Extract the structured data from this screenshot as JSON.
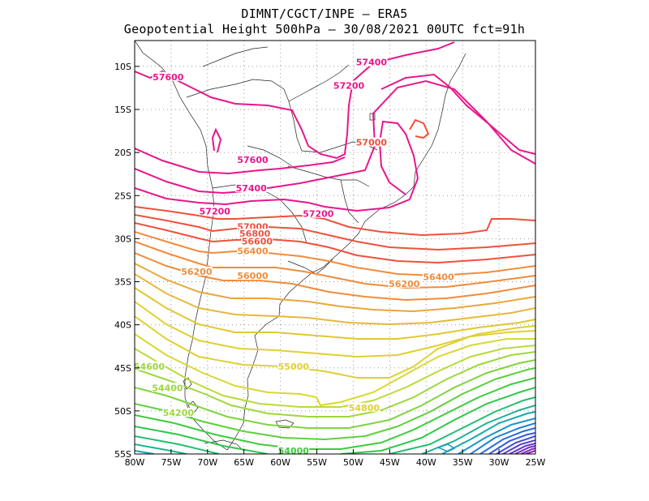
{
  "header": {
    "line1": "DIMNT/CGCT/INPE —  ERA5",
    "line2": "Geopotential Height 500hPa —  30/08/2021 00UTC fct=91h"
  },
  "map": {
    "lon_range": [
      -80,
      -25
    ],
    "lat_range": [
      -55,
      -7
    ],
    "grid": "dotted",
    "x_ticks": [
      {
        "value": -80,
        "label": "80W"
      },
      {
        "value": -75,
        "label": "75W"
      },
      {
        "value": -70,
        "label": "70W"
      },
      {
        "value": -65,
        "label": "65W"
      },
      {
        "value": -60,
        "label": "60W"
      },
      {
        "value": -55,
        "label": "55W"
      },
      {
        "value": -50,
        "label": "50W"
      },
      {
        "value": -45,
        "label": "45W"
      },
      {
        "value": -40,
        "label": "40W"
      },
      {
        "value": -35,
        "label": "35W"
      },
      {
        "value": -30,
        "label": "30W"
      },
      {
        "value": -25,
        "label": "25W"
      }
    ],
    "y_ticks": [
      {
        "value": -10,
        "label": "10S"
      },
      {
        "value": -15,
        "label": "15S"
      },
      {
        "value": -20,
        "label": "20S"
      },
      {
        "value": -25,
        "label": "25S"
      },
      {
        "value": -30,
        "label": "30S"
      },
      {
        "value": -35,
        "label": "35S"
      },
      {
        "value": -40,
        "label": "40S"
      },
      {
        "value": -45,
        "label": "45S"
      },
      {
        "value": -50,
        "label": "50S"
      },
      {
        "value": -55,
        "label": "55S"
      }
    ],
    "contour_labels": [
      {
        "text": "57400",
        "lon": -47.5,
        "lat": -9.7,
        "color": "#e8168c"
      },
      {
        "text": "57600",
        "lon": -75.4,
        "lat": -11.4,
        "color": "#e8168c"
      },
      {
        "text": "57200",
        "lon": -50.6,
        "lat": -12.4,
        "color": "#e8168c"
      },
      {
        "text": "57000",
        "lon": -47.5,
        "lat": -19.0,
        "color": "#f0503c"
      },
      {
        "text": "57600",
        "lon": -63.8,
        "lat": -21.0,
        "color": "#e8168c"
      },
      {
        "text": "57400",
        "lon": -64.0,
        "lat": -24.3,
        "color": "#e8168c"
      },
      {
        "text": "57200",
        "lon": -69.0,
        "lat": -27.0,
        "color": "#e8168c"
      },
      {
        "text": "57200",
        "lon": -54.8,
        "lat": -27.3,
        "color": "#e8168c"
      },
      {
        "text": "57000",
        "lon": -63.8,
        "lat": -28.8,
        "color": "#f0503c"
      },
      {
        "text": "56800",
        "lon": -63.5,
        "lat": -29.6,
        "color": "#f0503c"
      },
      {
        "text": "56600",
        "lon": -63.2,
        "lat": -30.5,
        "color": "#f0503c"
      },
      {
        "text": "56400",
        "lon": -63.8,
        "lat": -31.6,
        "color": "#f08c3c"
      },
      {
        "text": "56200",
        "lon": -71.5,
        "lat": -34.0,
        "color": "#f08c3c"
      },
      {
        "text": "56000",
        "lon": -63.8,
        "lat": -34.5,
        "color": "#f08c3c"
      },
      {
        "text": "56400",
        "lon": -38.3,
        "lat": -34.6,
        "color": "#f08c3c"
      },
      {
        "text": "56200",
        "lon": -43.0,
        "lat": -35.4,
        "color": "#f08c3c"
      },
      {
        "text": "55000",
        "lon": -58.2,
        "lat": -45.0,
        "color": "#e0d030"
      },
      {
        "text": "54600",
        "lon": -78.0,
        "lat": -45.0,
        "color": "#9cd83c"
      },
      {
        "text": "54400",
        "lon": -75.5,
        "lat": -47.5,
        "color": "#9cd83c"
      },
      {
        "text": "54800",
        "lon": -48.5,
        "lat": -49.8,
        "color": "#e0d030"
      },
      {
        "text": "54200",
        "lon": -74.0,
        "lat": -50.4,
        "color": "#9cd83c"
      },
      {
        "text": "54000",
        "lon": -58.2,
        "lat": -54.8,
        "color": "#3ccc3c"
      }
    ]
  }
}
